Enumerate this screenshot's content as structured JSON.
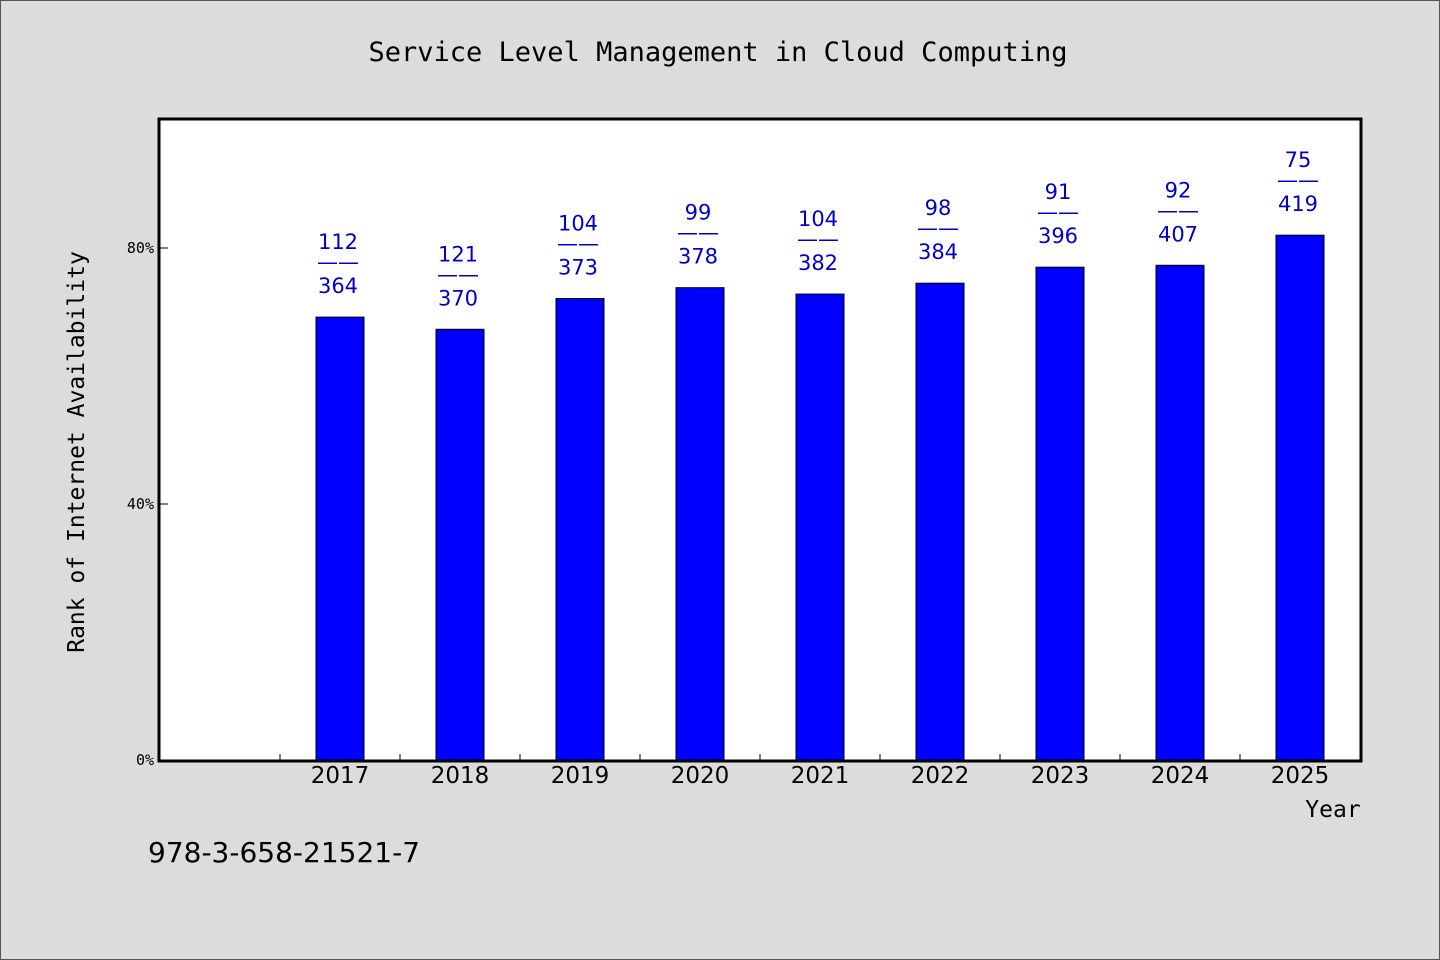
{
  "chart_data": {
    "type": "bar",
    "title": "Service Level Management in Cloud Computing",
    "xlabel": "Year",
    "ylabel": "Rank of Internet Availability",
    "categories": [
      "2017",
      "2018",
      "2019",
      "2020",
      "2021",
      "2022",
      "2023",
      "2024",
      "2025"
    ],
    "values": [
      69.2,
      67.3,
      72.1,
      73.8,
      72.8,
      74.5,
      77.0,
      77.3,
      82.0
    ],
    "value_unit": "%",
    "data_labels": [
      {
        "top": "112",
        "bottom": "364"
      },
      {
        "top": "121",
        "bottom": "370"
      },
      {
        "top": "104",
        "bottom": "373"
      },
      {
        "top": "99",
        "bottom": "378"
      },
      {
        "top": "104",
        "bottom": "382"
      },
      {
        "top": "98",
        "bottom": "384"
      },
      {
        "top": "91",
        "bottom": "396"
      },
      {
        "top": "92",
        "bottom": "407"
      },
      {
        "top": "75",
        "bottom": "419"
      }
    ],
    "label_separator": "——",
    "y_ticks": [
      {
        "value": 0,
        "label": "0%"
      },
      {
        "value": 40,
        "label": "40%"
      },
      {
        "value": 80,
        "label": "80%"
      }
    ],
    "ylim": [
      0,
      100
    ],
    "grid": false,
    "colors": {
      "bar": "#0000ff",
      "bar_edge": "#000000",
      "data_label": "#0000cc",
      "background": "#dcdcdc",
      "plot_area": "#ffffff"
    }
  },
  "footer_text": "978-3-658-21521-7"
}
